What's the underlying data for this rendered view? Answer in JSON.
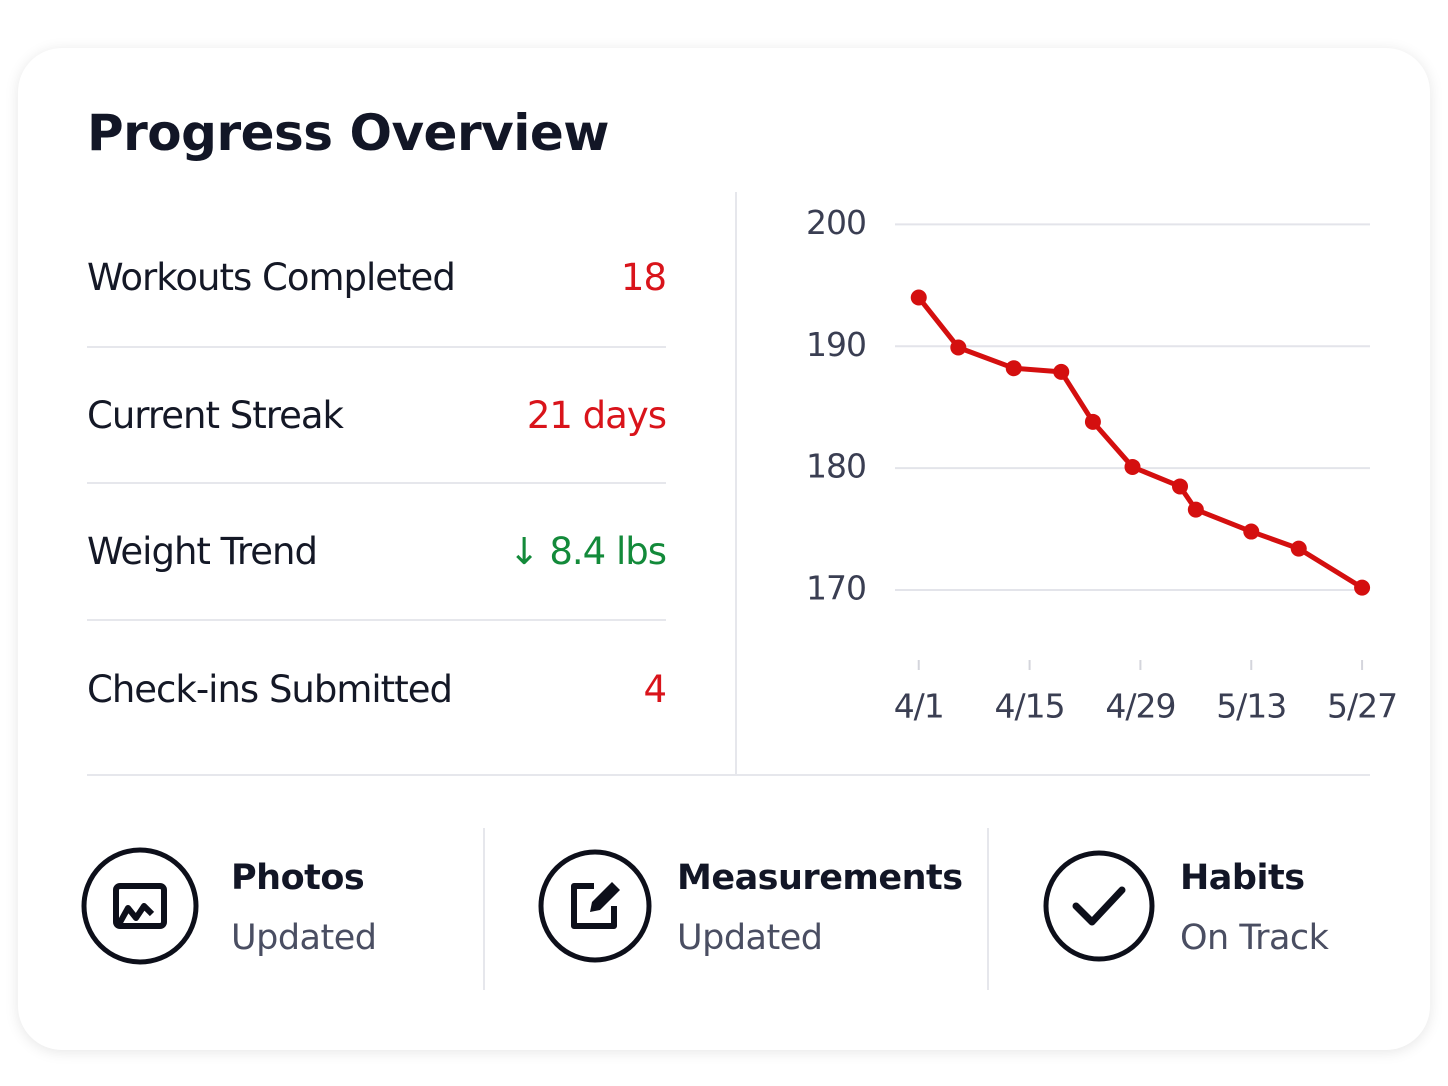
{
  "header": {
    "title": "Progress Overview"
  },
  "stats": [
    {
      "label": "Workouts Completed",
      "value": "18",
      "color": "#d9141b"
    },
    {
      "label": "Current Streak",
      "value": "21 days",
      "color": "#d9141b"
    },
    {
      "label": "Weight Trend",
      "value": "↓ 8.4 lbs",
      "color": "#138a3a"
    },
    {
      "label": "Check-ins Submitted",
      "value": "4",
      "color": "#d9141b"
    }
  ],
  "chart_data": {
    "type": "line",
    "x": [
      "4/1",
      "4/6",
      "4/13",
      "4/19",
      "4/23",
      "4/28",
      "5/4",
      "5/6",
      "5/13",
      "5/19",
      "5/27"
    ],
    "values": [
      194.0,
      189.9,
      188.2,
      187.9,
      183.8,
      180.1,
      178.5,
      176.6,
      174.8,
      173.4,
      170.2
    ],
    "color": "#d40f0f",
    "xlim": [
      "3/29",
      "5/28"
    ],
    "xticks": [
      "4/1",
      "4/15",
      "4/29",
      "5/13",
      "5/27"
    ],
    "ylim": [
      165,
      202
    ],
    "yticks": [
      170,
      180,
      190,
      200
    ],
    "grid": true
  },
  "items": [
    {
      "title": "Photos",
      "status": "Updated"
    },
    {
      "title": "Measurements",
      "status": "Updated"
    },
    {
      "title": "Habits",
      "status": "On Track"
    }
  ]
}
